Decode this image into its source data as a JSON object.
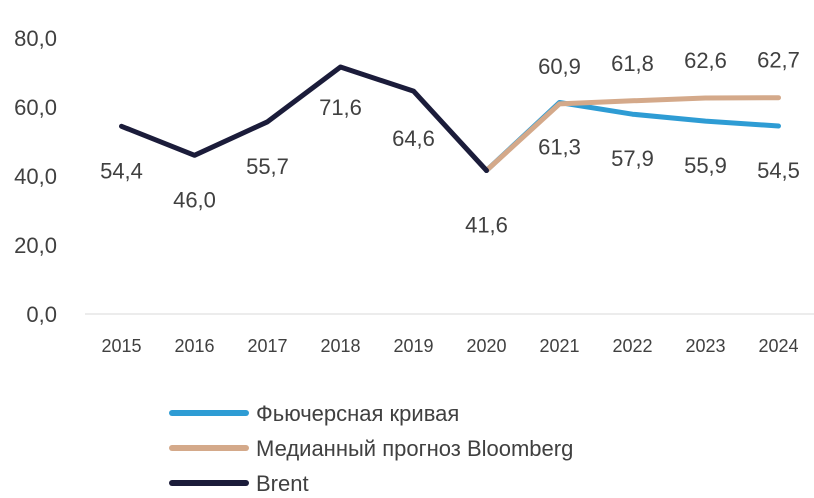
{
  "chart_data": {
    "type": "line",
    "categories": [
      "2015",
      "2016",
      "2017",
      "2018",
      "2019",
      "2020",
      "2021",
      "2022",
      "2023",
      "2024"
    ],
    "ylim": [
      0,
      80
    ],
    "yticks": [
      "0,0",
      "20,0",
      "40,0",
      "60,0",
      "80,0"
    ],
    "grid": false,
    "legend_position": "bottom",
    "series": [
      {
        "name": "Фьючерсная кривая",
        "color": "#2E9CD4",
        "values": [
          null,
          null,
          null,
          null,
          null,
          41.6,
          61.3,
          57.9,
          55.9,
          54.5
        ],
        "labels": [
          null,
          null,
          null,
          null,
          null,
          null,
          "61,3",
          "57,9",
          "55,9",
          "54,5"
        ]
      },
      {
        "name": "Медианный прогноз Bloomberg",
        "color": "#D4A98A",
        "values": [
          null,
          null,
          null,
          null,
          null,
          41.6,
          60.9,
          61.8,
          62.6,
          62.7
        ],
        "labels": [
          null,
          null,
          null,
          null,
          null,
          null,
          "60,9",
          "61,8",
          "62,6",
          "62,7"
        ]
      },
      {
        "name": "Brent",
        "color": "#1B1C3A",
        "values": [
          54.4,
          46.0,
          55.7,
          71.6,
          64.6,
          41.6,
          null,
          null,
          null,
          null
        ],
        "labels": [
          "54,4",
          "46,0",
          "55,7",
          "71,6",
          "64,6",
          "41,6",
          null,
          null,
          null,
          null
        ]
      }
    ]
  }
}
